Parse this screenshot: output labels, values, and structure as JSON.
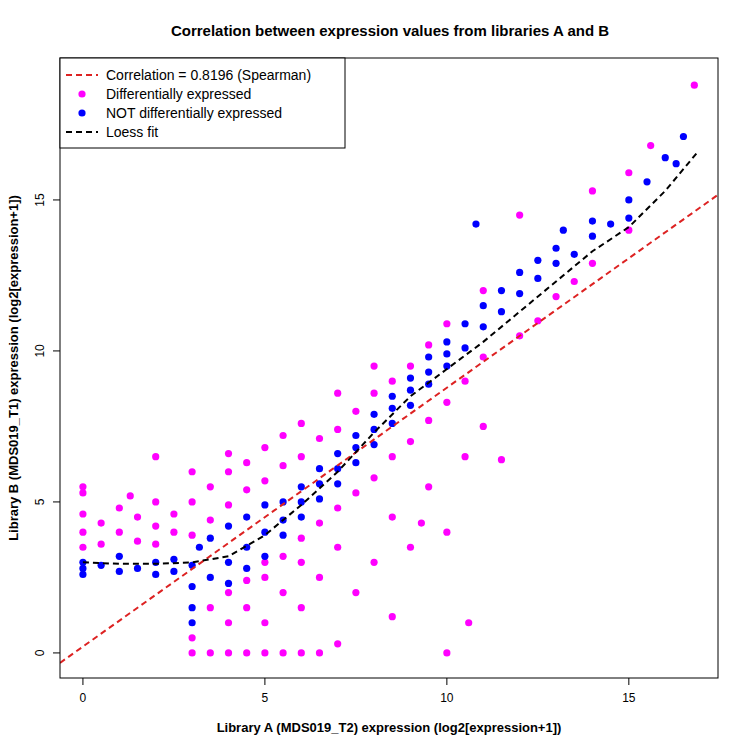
{
  "chart_data": {
    "type": "scatter",
    "title": "Correlation between expression values from libraries A and B",
    "x_label": "Library A (MDS019_T2) expression (log2[expression+1])",
    "y_label": "Library B (MDS019_T1) expression (log2[expression+1])",
    "xlim": [
      -0.63,
      17.45
    ],
    "ylim": [
      -0.83,
      19.7
    ],
    "xticks": [
      0,
      5,
      10,
      15
    ],
    "yticks": [
      0,
      5,
      10,
      15
    ],
    "legend": "topleft",
    "series": [
      {
        "name": "Correlation = 0.8196 (Spearman)",
        "color": "#dd2222",
        "type": "line",
        "line_style": "dashed",
        "x": [
          -0.63,
          17.45
        ],
        "values": [
          -0.33,
          15.17
        ]
      },
      {
        "name": "Differentially expressed",
        "color": "#ff00ff",
        "type": "scatter",
        "marker": "circle",
        "x": [
          0,
          0,
          0,
          0,
          0,
          0.5,
          0.5,
          1,
          1,
          1.5,
          1.5,
          2,
          2,
          2,
          2.5,
          2.5,
          3,
          3,
          3,
          3.5,
          3.5,
          4,
          4,
          4,
          4.5,
          4.5,
          5,
          5,
          5.5,
          5.5,
          6,
          6,
          6.5,
          7,
          7,
          7.5,
          8,
          8,
          8.5,
          9,
          9.5,
          10,
          11,
          12,
          14,
          15,
          15.6,
          16.8,
          2,
          1.3,
          3,
          3.5,
          4,
          4.5,
          5,
          5.5,
          6,
          6.5,
          3,
          3.5,
          4,
          4,
          4.5,
          4.5,
          5,
          5,
          5,
          5.5,
          5.5,
          6,
          6,
          6,
          6.5,
          6.5,
          7,
          7,
          7,
          7.5,
          7.5,
          8,
          8,
          8.5,
          8.5,
          9,
          9,
          9.5,
          9.5,
          10,
          10,
          10.5,
          10.5,
          10.6,
          11,
          11,
          11.5,
          12,
          12.5,
          13,
          13.5,
          14,
          15,
          10,
          8.5,
          9.3
        ],
        "values": [
          3.5,
          4.0,
          4.6,
          5.3,
          5.5,
          3.6,
          4.3,
          4.0,
          4.8,
          3.7,
          4.5,
          3.6,
          4.2,
          5.0,
          4.0,
          4.6,
          3.9,
          5.0,
          6.0,
          4.4,
          5.5,
          4.9,
          6.0,
          6.6,
          5.4,
          6.3,
          5.7,
          6.8,
          6.2,
          7.2,
          6.5,
          7.6,
          7.1,
          7.4,
          8.6,
          8.0,
          8.6,
          9.5,
          9.0,
          9.5,
          10.2,
          10.9,
          12.0,
          14.5,
          15.3,
          15.9,
          16.8,
          18.8,
          6.5,
          5.2,
          0,
          0,
          0,
          0,
          0,
          0,
          0,
          0,
          0.5,
          1.5,
          1.0,
          2.0,
          1.5,
          2.4,
          1.0,
          2.5,
          3.0,
          2.0,
          3.2,
          1.5,
          3.0,
          3.8,
          2.5,
          4.3,
          0.3,
          3.5,
          4.8,
          2.0,
          5.3,
          3.0,
          5.8,
          4.5,
          6.5,
          3.5,
          7.0,
          5.5,
          7.7,
          4.0,
          8.3,
          6.5,
          9.0,
          1.0,
          7.5,
          9.8,
          6.4,
          10.5,
          11.0,
          11.8,
          12.3,
          12.9,
          14.0,
          0,
          1.2,
          4.3
        ]
      },
      {
        "name": "NOT differentially expressed",
        "color": "#0000ff",
        "type": "scatter",
        "marker": "circle",
        "x": [
          0,
          0,
          0,
          0.5,
          1,
          1,
          1.5,
          2,
          2,
          2.5,
          2.5,
          3,
          3,
          3,
          3,
          3.2,
          3.5,
          3.5,
          4,
          4,
          4,
          4.5,
          4.5,
          4.5,
          5,
          5,
          5,
          5.5,
          5.5,
          5.5,
          6,
          6,
          6,
          6.5,
          6.5,
          6.5,
          7,
          7,
          7,
          7.5,
          7.5,
          7.5,
          8,
          8,
          8,
          8.5,
          8.5,
          8.5,
          9,
          9,
          9,
          9.5,
          9.5,
          9.5,
          10,
          10,
          10,
          10.5,
          10.5,
          11,
          11,
          11.5,
          11.5,
          12,
          12,
          12.5,
          12.5,
          13,
          13,
          13.5,
          14,
          14,
          14.5,
          15,
          15,
          15.5,
          16,
          16.5,
          16.3,
          10.8,
          13.2
        ],
        "values": [
          2.6,
          3.0,
          2.8,
          2.9,
          2.7,
          3.2,
          2.8,
          3.0,
          2.6,
          3.1,
          2.7,
          2.9,
          2.2,
          1.5,
          1.0,
          3.5,
          2.5,
          3.8,
          3.0,
          4.2,
          2.3,
          3.5,
          4.5,
          2.8,
          3.2,
          4.0,
          4.9,
          3.9,
          5.0,
          4.4,
          4.5,
          5.5,
          5.0,
          5.1,
          6.1,
          5.6,
          5.6,
          6.6,
          6.1,
          6.3,
          7.2,
          6.8,
          6.9,
          7.9,
          7.4,
          7.6,
          8.5,
          8.1,
          8.2,
          9.1,
          8.7,
          8.9,
          9.8,
          9.3,
          9.5,
          10.3,
          9.9,
          10.1,
          10.9,
          10.8,
          11.5,
          11.3,
          12.0,
          11.9,
          12.6,
          12.4,
          13.0,
          12.9,
          13.4,
          13.2,
          13.8,
          14.3,
          14.2,
          14.4,
          15.0,
          15.6,
          16.4,
          17.1,
          16.2,
          14.2,
          14.0
        ]
      },
      {
        "name": "Loess fit",
        "color": "#000000",
        "type": "line",
        "line_style": "dashed",
        "x": [
          0,
          1,
          2,
          3,
          4,
          5,
          6,
          7,
          8,
          9,
          10,
          11,
          12,
          13,
          14,
          15,
          16,
          16.9
        ],
        "values": [
          3.0,
          2.95,
          2.95,
          3.0,
          3.2,
          3.9,
          4.9,
          6.0,
          7.3,
          8.5,
          9.4,
          10.3,
          11.3,
          12.3,
          13.3,
          14.1,
          15.3,
          16.6
        ]
      }
    ]
  }
}
